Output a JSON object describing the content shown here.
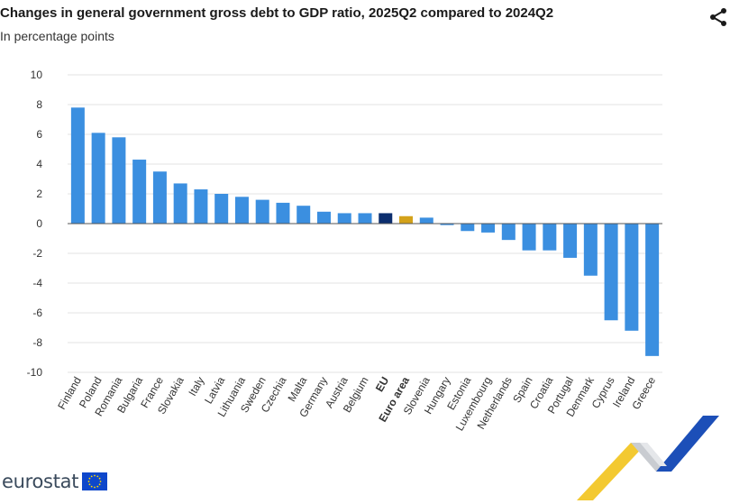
{
  "header": {
    "title": "Changes in general government gross debt to GDP ratio, 2025Q2 compared to 2024Q2",
    "subtitle": "In percentage points"
  },
  "brand": {
    "logo_text": "eurostat"
  },
  "icons": {
    "share": "share-icon",
    "flag": "eu-flag-icon"
  },
  "colors": {
    "bar": "#3b8fe0",
    "eu": "#0c2e6e",
    "euro_area": "#d4a21a",
    "grid": "#e3e3e3",
    "flag_blue": "#0e47cb",
    "flag_star": "#ffdd00"
  },
  "chart_data": {
    "type": "bar",
    "title": "Changes in general government gross debt to GDP ratio, 2025Q2 compared to 2024Q2",
    "subtitle": "In percentage points",
    "xlabel": "",
    "ylabel": "",
    "ylim": [
      -10,
      10
    ],
    "yticks": [
      10,
      8,
      6,
      4,
      2,
      0,
      -2,
      -4,
      -6,
      -8,
      -10
    ],
    "grid": true,
    "legend": "none",
    "categories": [
      "Finland",
      "Poland",
      "Romania",
      "Bulgaria",
      "France",
      "Slovakia",
      "Italy",
      "Latvia",
      "Lithuania",
      "Sweden",
      "Czechia",
      "Malta",
      "Germany",
      "Austria",
      "Belgium",
      "EU",
      "Euro area",
      "Slovenia",
      "Hungary",
      "Estonia",
      "Luxembourg",
      "Netherlands",
      "Spain",
      "Croatia",
      "Portugal",
      "Denmark",
      "Cyprus",
      "Ireland",
      "Greece"
    ],
    "values": [
      7.8,
      6.1,
      5.8,
      4.3,
      3.5,
      2.7,
      2.3,
      2.0,
      1.8,
      1.6,
      1.4,
      1.2,
      0.8,
      0.7,
      0.7,
      0.7,
      0.5,
      0.4,
      -0.1,
      -0.5,
      -0.6,
      -1.1,
      -1.8,
      -1.8,
      -2.3,
      -3.5,
      -6.5,
      -7.2,
      -8.9
    ],
    "highlight": {
      "EU": "#0c2e6e",
      "Euro area": "#d4a21a"
    },
    "bold_categories": [
      "EU",
      "Euro area"
    ]
  }
}
